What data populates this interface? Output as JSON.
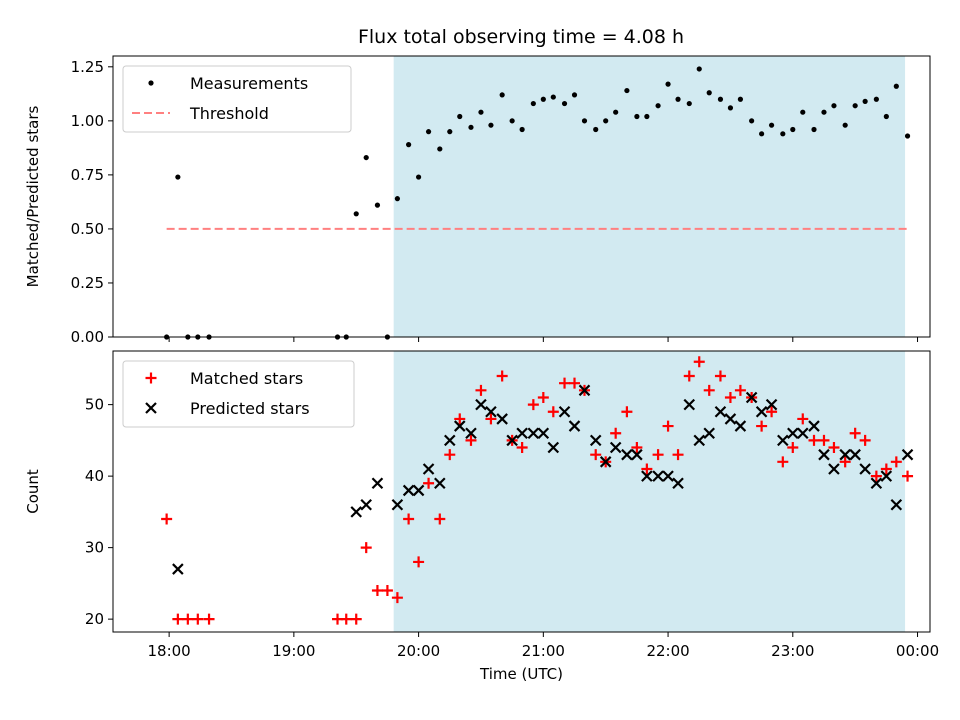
{
  "chart_data": [
    {
      "type": "scatter",
      "title": "Flux total observing time = 4.08 h",
      "xlabel": "",
      "ylabel": "Matched/Predicted stars",
      "ylim": [
        0,
        1.3
      ],
      "xlim": [
        17.55,
        24.1
      ],
      "yticks": [
        0,
        0.25,
        0.5,
        0.75,
        1.0,
        1.25
      ],
      "ytick_labels": [
        "0.00",
        "0.25",
        "0.50",
        "0.75",
        "1.00",
        "1.25"
      ],
      "shaded_span": [
        19.8,
        23.9
      ],
      "shade_color": "#add8e6",
      "series": [
        {
          "name": "Measurements",
          "marker": "dot",
          "color": "#000000",
          "x": [
            17.98,
            18.07,
            18.15,
            18.23,
            18.32,
            19.35,
            19.42,
            19.5,
            19.58,
            19.67,
            19.75,
            19.83,
            19.92,
            20.0,
            20.08,
            20.17,
            20.25,
            20.33,
            20.42,
            20.5,
            20.58,
            20.67,
            20.75,
            20.83,
            20.92,
            21.0,
            21.08,
            21.17,
            21.25,
            21.33,
            21.42,
            21.5,
            21.58,
            21.67,
            21.75,
            21.83,
            21.92,
            22.0,
            22.08,
            22.17,
            22.25,
            22.33,
            22.42,
            22.5,
            22.58,
            22.67,
            22.75,
            22.83,
            22.92,
            23.0,
            23.08,
            23.17,
            23.25,
            23.33,
            23.42,
            23.5,
            23.58,
            23.67,
            23.75,
            23.83,
            23.92
          ],
          "values": [
            0,
            0.74,
            0,
            0,
            0,
            0,
            0,
            0.57,
            0.83,
            0.61,
            0,
            0.64,
            0.89,
            0.74,
            0.95,
            0.87,
            0.95,
            1.02,
            0.97,
            1.04,
            0.98,
            1.12,
            1.0,
            0.96,
            1.08,
            1.1,
            1.11,
            1.08,
            1.12,
            1.0,
            0.96,
            1.0,
            1.04,
            1.14,
            1.02,
            1.02,
            1.07,
            1.17,
            1.1,
            1.08,
            1.24,
            1.13,
            1.1,
            1.06,
            1.1,
            1.0,
            0.94,
            0.98,
            0.94,
            0.96,
            1.04,
            0.96,
            1.04,
            1.07,
            0.98,
            1.07,
            1.09,
            1.1,
            1.02,
            1.16,
            0.93
          ]
        },
        {
          "name": "Threshold",
          "marker": "dashed-line",
          "color": "#ff8080",
          "x": [
            17.98,
            23.92
          ],
          "values": [
            0.5,
            0.5
          ]
        }
      ],
      "legend": "top-left"
    },
    {
      "type": "scatter",
      "title": "",
      "xlabel": "Time (UTC)",
      "ylabel": "Count",
      "ylim": [
        18.2,
        57.5
      ],
      "xlim": [
        17.55,
        24.1
      ],
      "yticks": [
        20,
        30,
        40,
        50
      ],
      "ytick_labels": [
        "20",
        "30",
        "40",
        "50"
      ],
      "xticks": [
        18,
        19,
        20,
        21,
        22,
        23,
        24
      ],
      "xtick_labels": [
        "18:00",
        "19:00",
        "20:00",
        "21:00",
        "22:00",
        "23:00",
        "00:00"
      ],
      "shaded_span": [
        19.8,
        23.9
      ],
      "shade_color": "#add8e6",
      "series": [
        {
          "name": "Matched stars",
          "marker": "plus",
          "color": "#ff0000",
          "x": [
            17.98,
            18.07,
            18.15,
            18.23,
            18.32,
            19.35,
            19.42,
            19.5,
            19.58,
            19.67,
            19.75,
            19.83,
            19.92,
            20.0,
            20.08,
            20.17,
            20.25,
            20.33,
            20.42,
            20.5,
            20.58,
            20.67,
            20.75,
            20.83,
            20.92,
            21.0,
            21.08,
            21.17,
            21.25,
            21.33,
            21.42,
            21.5,
            21.58,
            21.67,
            21.75,
            21.83,
            21.92,
            22.0,
            22.08,
            22.17,
            22.25,
            22.33,
            22.42,
            22.5,
            22.58,
            22.67,
            22.75,
            22.83,
            22.92,
            23.0,
            23.08,
            23.17,
            23.25,
            23.33,
            23.42,
            23.5,
            23.58,
            23.67,
            23.75,
            23.83,
            23.92
          ],
          "values": [
            34,
            20,
            20,
            20,
            20,
            20,
            20,
            20,
            30,
            24,
            24,
            23,
            34,
            28,
            39,
            34,
            43,
            48,
            45,
            52,
            48,
            54,
            45,
            44,
            50,
            51,
            49,
            53,
            53,
            52,
            43,
            42,
            46,
            49,
            44,
            41,
            43,
            47,
            43,
            54,
            56,
            52,
            54,
            51,
            52,
            51,
            47,
            49,
            42,
            44,
            48,
            45,
            45,
            44,
            42,
            46,
            45,
            40,
            41,
            42,
            40
          ]
        },
        {
          "name": "Predicted stars",
          "marker": "x",
          "color": "#000000",
          "x": [
            18.07,
            19.5,
            19.58,
            19.67,
            19.83,
            19.92,
            20.0,
            20.08,
            20.17,
            20.25,
            20.33,
            20.42,
            20.5,
            20.58,
            20.67,
            20.75,
            20.83,
            20.92,
            21.0,
            21.08,
            21.17,
            21.25,
            21.33,
            21.42,
            21.5,
            21.58,
            21.67,
            21.75,
            21.83,
            21.92,
            22.0,
            22.08,
            22.17,
            22.25,
            22.33,
            22.42,
            22.5,
            22.58,
            22.67,
            22.75,
            22.83,
            22.92,
            23.0,
            23.08,
            23.17,
            23.25,
            23.33,
            23.42,
            23.5,
            23.58,
            23.67,
            23.75,
            23.83,
            23.92
          ],
          "values": [
            27,
            35,
            36,
            39,
            36,
            38,
            38,
            41,
            39,
            45,
            47,
            46,
            50,
            49,
            48,
            45,
            46,
            46,
            46,
            44,
            49,
            47,
            52,
            45,
            42,
            44,
            43,
            43,
            40,
            40,
            40,
            39,
            50,
            45,
            46,
            49,
            48,
            47,
            51,
            49,
            50,
            45,
            46,
            46,
            47,
            43,
            41,
            43,
            43,
            41,
            39,
            40,
            36,
            43
          ]
        }
      ],
      "legend": "top-left"
    }
  ]
}
